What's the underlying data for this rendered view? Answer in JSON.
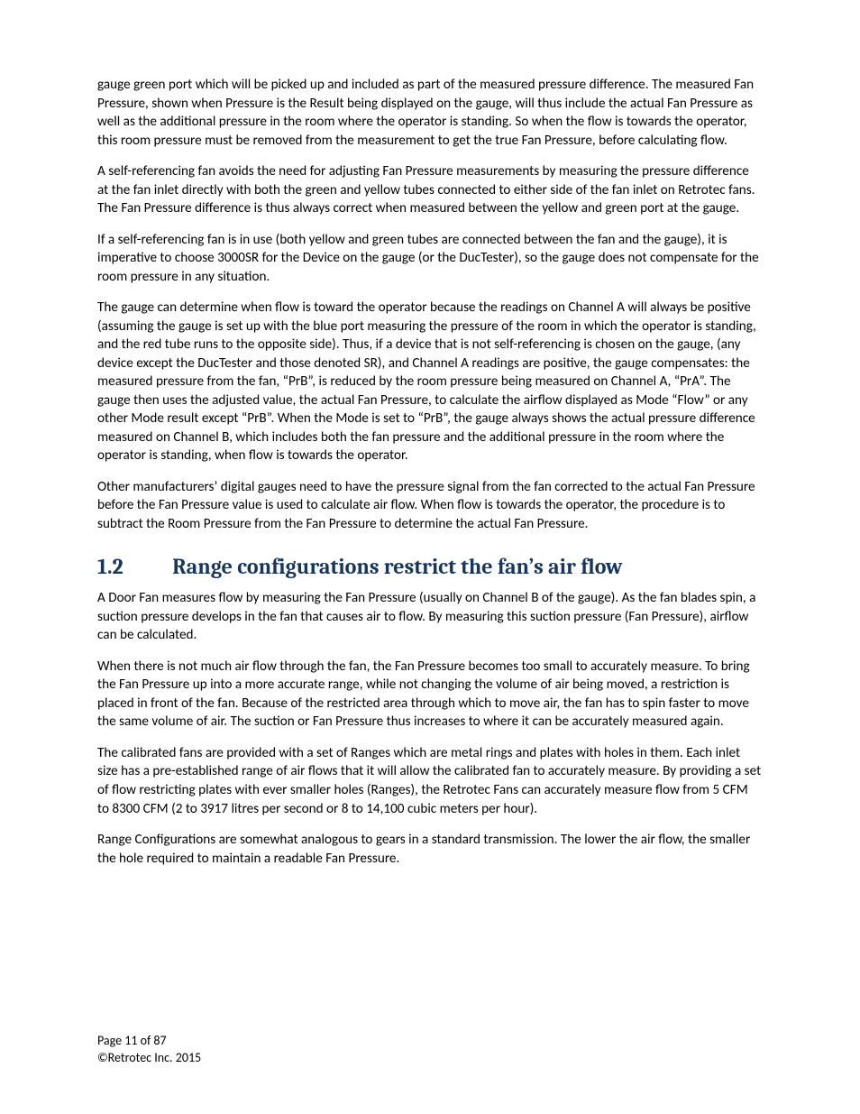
{
  "paragraphs": {
    "p1": "gauge green port which will be picked up and included as part of the measured pressure difference. The measured Fan Pressure, shown when Pressure is the Result being displayed on the gauge, will thus include the actual Fan Pressure as well as the additional pressure in the room where the operator is standing.  So when the flow is towards the operator, this room pressure must be removed from the measurement to get the true Fan Pressure, before calculating flow.",
    "p2": "A self-referencing fan avoids the need for adjusting Fan Pressure measurements by measuring the pressure difference at the fan inlet directly with both the green and yellow tubes connected to either side of the fan inlet on Retrotec fans.  The Fan Pressure difference is thus always correct when measured between the yellow and green port at the gauge.",
    "p3": "If a self-referencing fan is in use (both yellow and green tubes are connected between the fan and the gauge), it is imperative to choose 3000SR for the Device on the gauge (or the DucTester), so the gauge does not compensate for the room pressure in any situation.",
    "p4": "The gauge can determine when flow is toward the operator because the readings on Channel A will always be positive (assuming the gauge is set up with the blue port measuring the pressure of the room in which the operator is standing, and the red tube runs to the opposite side).  Thus, if a device that is not self-referencing is chosen on the gauge, (any device except the DucTester and those denoted SR), and Channel A readings are positive, the gauge compensates:  the measured pressure from the fan, “PrB”, is reduced by the room pressure being measured on Channel A, “PrA”.  The gauge then uses the adjusted value, the actual Fan Pressure, to calculate the airflow displayed as Mode “Flow” or any other Mode result except “PrB”.  When the Mode is set to “PrB”, the gauge always shows the actual pressure difference measured on Channel B, which includes both the fan pressure and the additional pressure in the room where the operator is standing, when flow is towards the operator.",
    "p5": "Other manufacturers’ digital gauges need to have the pressure signal from the fan corrected to the actual Fan Pressure before the Fan Pressure value is used to calculate air flow.  When flow is towards the operator, the procedure is to subtract the Room Pressure from the Fan Pressure to determine the actual Fan Pressure.",
    "p6": "A Door Fan measures flow by measuring the Fan Pressure (usually on Channel B of the gauge).  As the fan blades spin, a suction pressure develops in the fan that causes air to flow.  By measuring this suction pressure (Fan Pressure), airflow can be calculated.",
    "p7": "When there is not much air flow through the fan, the Fan Pressure becomes too small to accurately measure.  To bring the Fan Pressure up into a more accurate range, while not changing the volume of air being moved, a restriction is placed in front of the fan.  Because of the restricted area through which to move air, the fan has to spin faster to move the same volume of air.  The suction or Fan Pressure thus increases to where it can be accurately measured again.",
    "p8": "The calibrated fans are provided with a set of Ranges which are metal rings and plates with holes in them.  Each inlet size has a pre-established range of air flows that it will allow the calibrated fan to accurately measure.  By providing a set of flow restricting plates with ever smaller holes (Ranges), the Retrotec Fans can accurately measure flow from 5 CFM to 8300 CFM (2 to 3917 litres per second or 8 to 14,100 cubic meters per hour).",
    "p9": "Range Configurations are somewhat analogous to gears in a standard transmission.  The lower the air flow, the smaller the hole required to maintain a readable Fan Pressure."
  },
  "heading": {
    "number": "1.2",
    "title": "Range configurations restrict the fan’s air flow"
  },
  "footer": {
    "page_line": "Page 11 of 87",
    "copyright": "©Retrotec Inc. 2015"
  },
  "colors": {
    "body_text": "#000000",
    "heading": "#17365d",
    "background": "#ffffff"
  },
  "typography": {
    "body_font": "Calibri",
    "body_size_pt": 11,
    "heading_font": "Cambria",
    "heading_size_pt": 18,
    "heading_weight": "bold"
  }
}
